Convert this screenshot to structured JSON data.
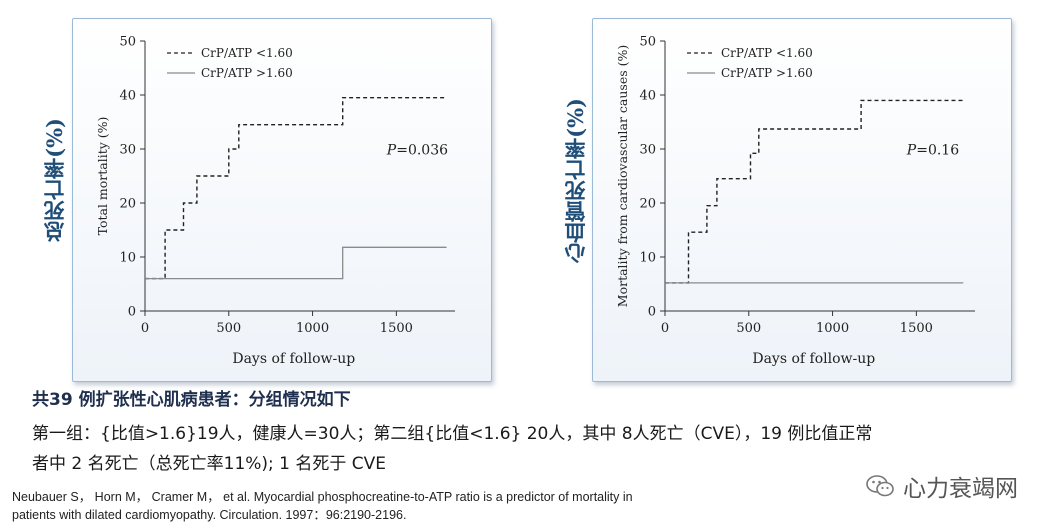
{
  "left_side_label": "总死亡率(%)",
  "right_side_label": "心血管死亡率(%)",
  "caption_line1": "共39 例扩张性心肌病患者：分组情况如下",
  "caption_line2": "第一组：{比值>1.6}19人，健康人=30人；第二组{比值<1.6} 20人，其中 8人死亡（CVE），19 例比值正常",
  "caption_line3": "者中 2 名死亡（总死亡率11%); 1 名死于 CVE",
  "citation_line1": "Neubauer S， Horn M， Cramer M， et al. Myocardial phosphocreatine-to-ATP ratio is a predictor of mortality in",
  "citation_line2": "patients with dilated cardiomyopathy. Circulation. 1997：96:2190-2196.",
  "watermark": "心力衰竭网",
  "colors": {
    "side_label": "#1f4e79",
    "panel_border": "#9cb9d8"
  },
  "chart_data": [
    {
      "type": "line",
      "title": "",
      "xlabel": "Days of follow-up",
      "ylabel": "Total mortality (%)",
      "xlim": [
        0,
        1850
      ],
      "ylim": [
        0,
        50
      ],
      "x_ticks": [
        0,
        500,
        1000,
        1500
      ],
      "y_ticks": [
        0,
        10,
        20,
        30,
        40,
        50
      ],
      "step": true,
      "annotation": "P=0.036",
      "legend_position": "top-left",
      "series": [
        {
          "name": "CrP/ATP <1.60",
          "style": "dashed",
          "x": [
            0,
            120,
            120,
            230,
            230,
            310,
            310,
            500,
            500,
            560,
            560,
            1180,
            1180,
            1800
          ],
          "y": [
            6,
            6,
            15,
            15,
            20,
            20,
            25,
            25,
            30,
            30,
            34.5,
            34.5,
            39.5,
            39.5
          ]
        },
        {
          "name": "CrP/ATP >1.60",
          "style": "solid",
          "x": [
            0,
            1180,
            1180,
            1800
          ],
          "y": [
            6,
            6,
            11.8,
            11.8
          ]
        }
      ]
    },
    {
      "type": "line",
      "title": "",
      "xlabel": "Days of follow-up",
      "ylabel": "Mortality from cardiovascular causes (%)",
      "xlim": [
        0,
        1850
      ],
      "ylim": [
        0,
        50
      ],
      "x_ticks": [
        0,
        500,
        1000,
        1500
      ],
      "y_ticks": [
        0,
        10,
        20,
        30,
        40,
        50
      ],
      "step": true,
      "annotation": "P=0.16",
      "legend_position": "top-left",
      "series": [
        {
          "name": "CrP/ATP <1.60",
          "style": "dashed",
          "x": [
            0,
            140,
            140,
            250,
            250,
            310,
            310,
            510,
            510,
            560,
            560,
            1170,
            1170,
            1780
          ],
          "y": [
            5.2,
            5.2,
            14.6,
            14.6,
            19.5,
            19.5,
            24.5,
            24.5,
            29.2,
            29.2,
            33.7,
            33.7,
            39,
            39
          ]
        },
        {
          "name": "CrP/ATP >1.60",
          "style": "solid",
          "x": [
            0,
            1780
          ],
          "y": [
            5.2,
            5.2
          ]
        }
      ]
    }
  ]
}
